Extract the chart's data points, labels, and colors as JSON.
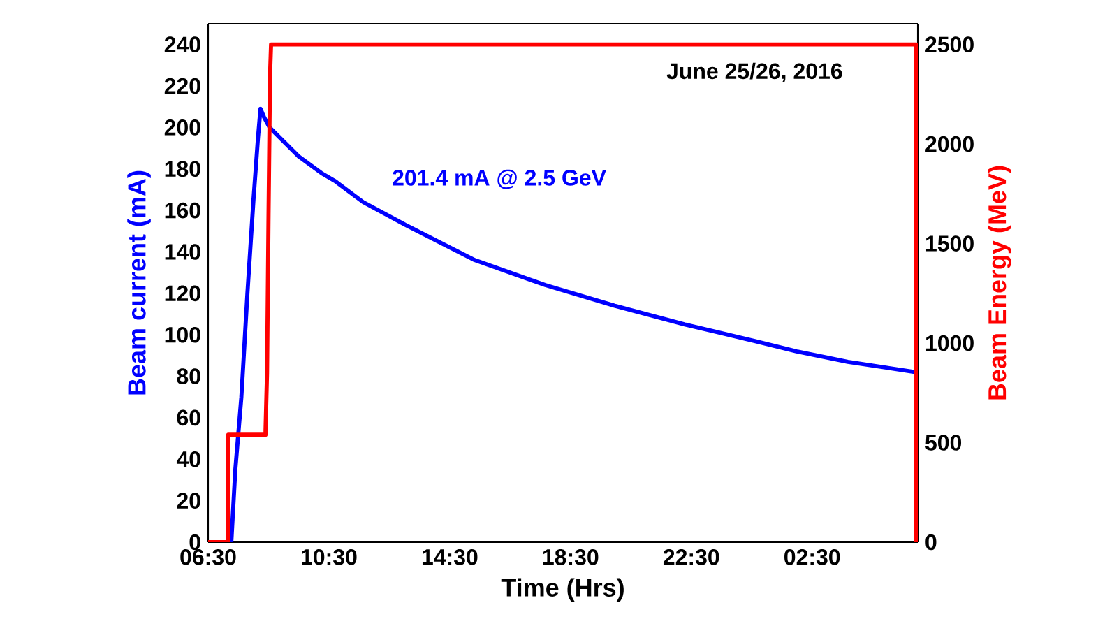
{
  "chart_data": {
    "type": "line",
    "xlabel": "Time (Hrs)",
    "ylabel": "Beam current (mA)",
    "y2label": "Beam Energy (MeV)",
    "xlim": [
      "2016-06-25T06:30",
      "2016-06-26T06:00"
    ],
    "ylim": [
      0,
      250
    ],
    "y2lim": [
      0,
      2604
    ],
    "xticks": [
      {
        "value": "2016-06-25T06:30",
        "label": "06:30"
      },
      {
        "value": "2016-06-25T10:30",
        "label": "10:30"
      },
      {
        "value": "2016-06-25T14:30",
        "label": "14:30"
      },
      {
        "value": "2016-06-25T18:30",
        "label": "18:30"
      },
      {
        "value": "2016-06-25T22:30",
        "label": "22:30"
      },
      {
        "value": "2016-06-26T02:30",
        "label": "02:30"
      }
    ],
    "yticks": [
      0,
      20,
      40,
      60,
      80,
      100,
      120,
      140,
      160,
      180,
      200,
      220,
      240
    ],
    "y2ticks": [
      0,
      500,
      1000,
      1500,
      2000,
      2500
    ],
    "series": [
      {
        "color": "#0000ff",
        "x": [
          "2016-06-25T07:16",
          "2016-06-25T07:24",
          "2016-06-25T07:36",
          "2016-06-25T07:48",
          "2016-06-25T08:00",
          "2016-06-25T08:09",
          "2016-06-25T08:14",
          "2016-06-25T08:21",
          "2016-06-25T08:32",
          "2016-06-25T09:30",
          "2016-06-25T10:15",
          "2016-06-25T10:43",
          "2016-06-25T11:38",
          "2016-06-25T13:02",
          "2016-06-25T15:20",
          "2016-06-25T17:40",
          "2016-06-25T19:58",
          "2016-06-25T22:17",
          "2016-06-26T00:36",
          "2016-06-26T01:59",
          "2016-06-26T03:41",
          "2016-06-26T05:56"
        ],
        "values": [
          0,
          35,
          70,
          120,
          165,
          195,
          209,
          205,
          200,
          186,
          178,
          174,
          164,
          153,
          136,
          124,
          114,
          105,
          97,
          92,
          87,
          82
        ]
      },
      {
        "axis": "y2",
        "color": "#ff0000",
        "x": [
          "2016-06-25T06:30",
          "2016-06-25T07:10",
          "2016-06-25T07:10",
          "2016-06-25T08:24",
          "2016-06-25T08:24",
          "2016-06-25T08:27",
          "2016-06-25T08:30",
          "2016-06-25T08:33",
          "2016-06-25T08:35",
          "2016-06-26T05:57",
          "2016-06-26T05:57"
        ],
        "values": [
          0,
          0,
          540,
          540,
          560,
          850,
          1650,
          2350,
          2500,
          2500,
          0
        ]
      }
    ],
    "annotations": [
      "201.4 mA @ 2.5 GeV",
      "June 25/26, 2016"
    ],
    "grid": false
  }
}
